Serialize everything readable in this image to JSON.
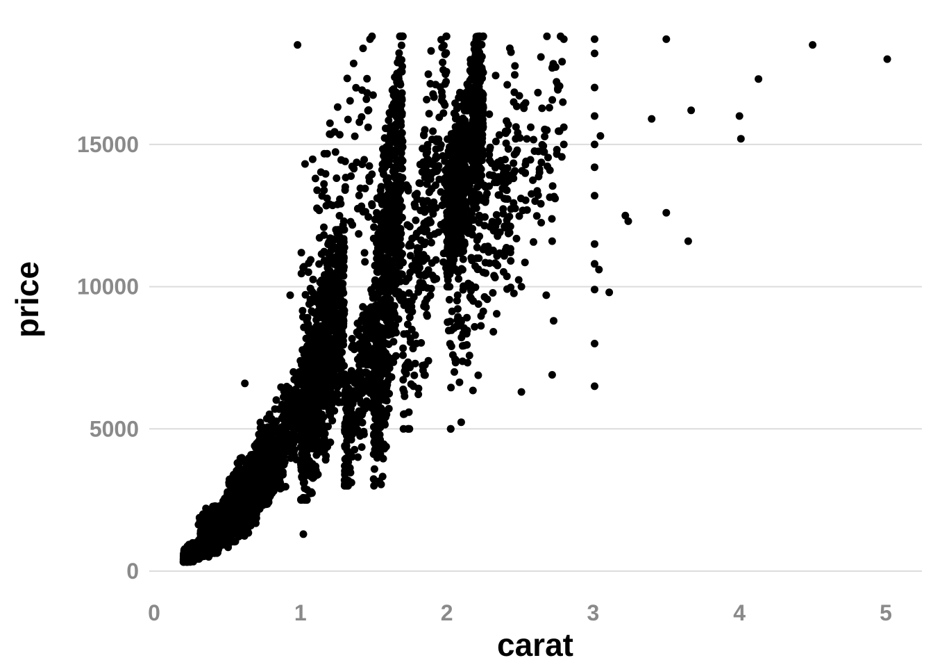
{
  "chart_data": {
    "type": "scatter",
    "title": "",
    "xlabel": "carat",
    "ylabel": "price",
    "xlim": [
      0,
      5.2
    ],
    "ylim": [
      0,
      19000
    ],
    "x_ticks": [
      0,
      1,
      2,
      3,
      4,
      5
    ],
    "x_tick_labels": [
      "0",
      "1",
      "2",
      "3",
      "4",
      "5"
    ],
    "y_ticks": [
      0,
      5000,
      10000,
      15000
    ],
    "y_tick_labels": [
      "0",
      "5000",
      "10000",
      "15000"
    ],
    "grid": true,
    "legend": "none",
    "point_color": "#000000",
    "point_clusters": [
      {
        "x": [
          0.2,
          0.45
        ],
        "y": [
          320,
          1300
        ],
        "n": 500
      },
      {
        "x": [
          0.3,
          0.7
        ],
        "y": [
          500,
          3000
        ],
        "n": 550
      },
      {
        "x": [
          0.5,
          0.9
        ],
        "y": [
          1500,
          5000
        ],
        "n": 500
      },
      {
        "x": [
          0.7,
          1.0
        ],
        "y": [
          2200,
          7000
        ],
        "n": 300
      },
      {
        "x": [
          1.0,
          1.3
        ],
        "y": [
          2500,
          12000
        ],
        "n": 900
      },
      {
        "x": [
          1.0,
          1.5
        ],
        "y": [
          6000,
          18800
        ],
        "n": 150
      },
      {
        "x": [
          1.3,
          1.5
        ],
        "y": [
          3000,
          10000
        ],
        "n": 250
      },
      {
        "x": [
          1.5,
          1.7
        ],
        "y": [
          3000,
          18800
        ],
        "n": 750
      },
      {
        "x": [
          1.7,
          2.0
        ],
        "y": [
          5000,
          18800
        ],
        "n": 250
      },
      {
        "x": [
          2.0,
          2.25
        ],
        "y": [
          10000,
          18800
        ],
        "n": 650
      },
      {
        "x": [
          2.0,
          2.5
        ],
        "y": [
          5000,
          18800
        ],
        "n": 200
      },
      {
        "x": [
          2.25,
          2.8
        ],
        "y": [
          9000,
          18800
        ],
        "n": 110
      }
    ],
    "points": [
      {
        "x": 3.01,
        "y": 18700
      },
      {
        "x": 3.01,
        "y": 18200
      },
      {
        "x": 3.01,
        "y": 17000
      },
      {
        "x": 3.01,
        "y": 16000
      },
      {
        "x": 3.01,
        "y": 15000
      },
      {
        "x": 3.01,
        "y": 14200
      },
      {
        "x": 3.01,
        "y": 13200
      },
      {
        "x": 3.01,
        "y": 11500
      },
      {
        "x": 3.01,
        "y": 10800
      },
      {
        "x": 3.01,
        "y": 9900
      },
      {
        "x": 3.01,
        "y": 8000
      },
      {
        "x": 3.01,
        "y": 6500
      },
      {
        "x": 3.04,
        "y": 10600
      },
      {
        "x": 3.05,
        "y": 15300
      },
      {
        "x": 3.11,
        "y": 9800
      },
      {
        "x": 3.22,
        "y": 12500
      },
      {
        "x": 3.24,
        "y": 12300
      },
      {
        "x": 3.4,
        "y": 15900
      },
      {
        "x": 3.5,
        "y": 18700
      },
      {
        "x": 3.5,
        "y": 12600
      },
      {
        "x": 3.65,
        "y": 11600
      },
      {
        "x": 3.67,
        "y": 16200
      },
      {
        "x": 4.0,
        "y": 16000
      },
      {
        "x": 4.01,
        "y": 15200
      },
      {
        "x": 4.13,
        "y": 17300
      },
      {
        "x": 4.5,
        "y": 18500
      },
      {
        "x": 5.01,
        "y": 18000
      },
      {
        "x": 2.8,
        "y": 18700
      },
      {
        "x": 2.75,
        "y": 17200
      },
      {
        "x": 2.74,
        "y": 13100
      },
      {
        "x": 2.72,
        "y": 11600
      },
      {
        "x": 2.68,
        "y": 9700
      },
      {
        "x": 2.73,
        "y": 8800
      },
      {
        "x": 2.72,
        "y": 6900
      },
      {
        "x": 2.51,
        "y": 6300
      },
      {
        "x": 2.51,
        "y": 10000
      },
      {
        "x": 2.8,
        "y": 15000
      },
      {
        "x": 0.93,
        "y": 9700
      },
      {
        "x": 0.62,
        "y": 6600
      },
      {
        "x": 0.98,
        "y": 18500
      },
      {
        "x": 1.02,
        "y": 1300
      },
      {
        "x": 0.95,
        "y": 5500
      }
    ]
  }
}
